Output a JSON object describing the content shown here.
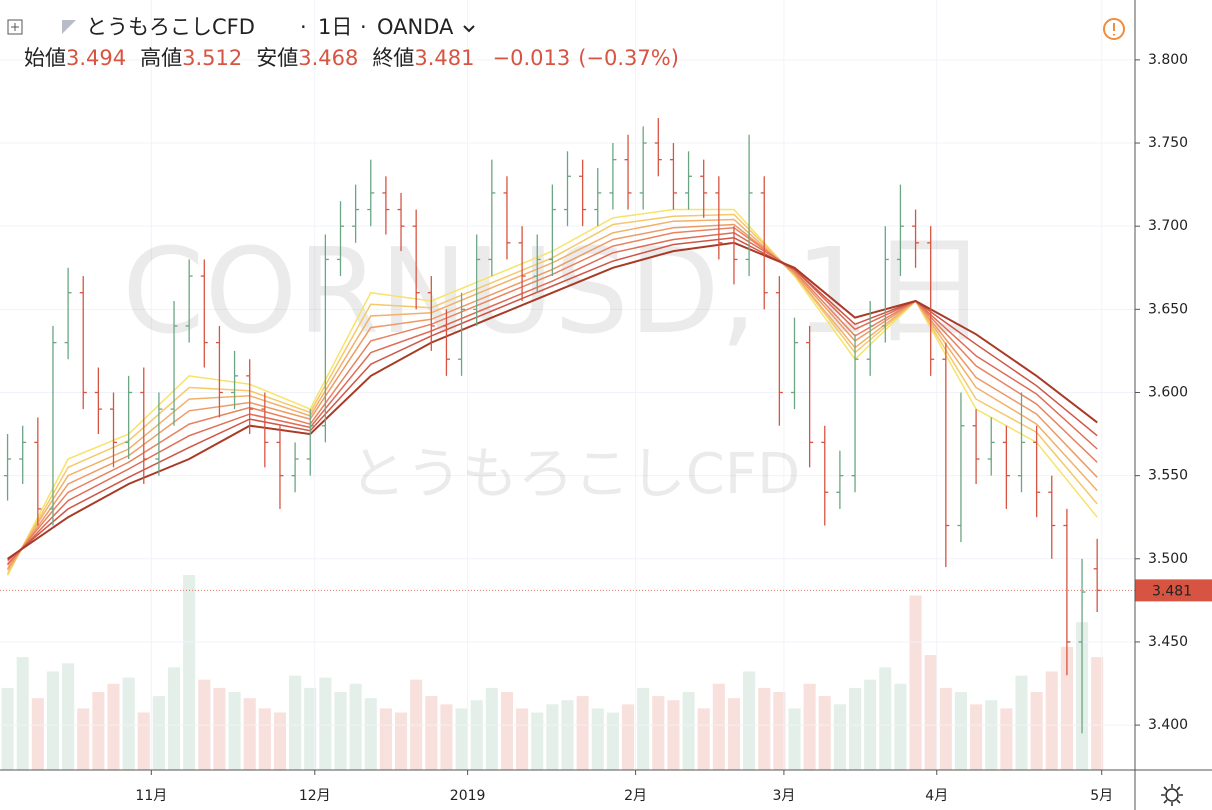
{
  "chart_data": {
    "type": "ohlc",
    "header": {
      "symbol": "とうもろこしCFD",
      "interval": "1日",
      "source": "OANDA",
      "open_label": "始値",
      "high_label": "高値",
      "low_label": "安値",
      "close_label": "終値",
      "change": {
        "value": -0.013,
        "label": "−0.013"
      },
      "change_pct": {
        "value": -0.37,
        "label": "(−0.37%)"
      }
    },
    "watermark": {
      "main": "CORNUSD, 1日",
      "sub": "とうもろこしCFD"
    },
    "categories": [
      null,
      null,
      null,
      null,
      null,
      null,
      null,
      null,
      null,
      null,
      null,
      null,
      null,
      null,
      null,
      null,
      null,
      null,
      null,
      null,
      null,
      null,
      null,
      null,
      null,
      null,
      null,
      null,
      null,
      null,
      null,
      null,
      null,
      null,
      null,
      null,
      null,
      null,
      null,
      null,
      null,
      null,
      null,
      null,
      null,
      null,
      null,
      null,
      null,
      null,
      null,
      null,
      null,
      null,
      null,
      null,
      null,
      null,
      null,
      null,
      null,
      null,
      null,
      null,
      null,
      null,
      null,
      null,
      null,
      null,
      null,
      null,
      null
    ],
    "xlim": [
      -0.5,
      74.5
    ],
    "xticks": [
      {
        "value": 9.5,
        "label": "11月"
      },
      {
        "value": 20.3,
        "label": "12月"
      },
      {
        "value": 30.4,
        "label": "2019"
      },
      {
        "value": 41.5,
        "label": "2月"
      },
      {
        "value": 51.3,
        "label": "3月"
      },
      {
        "value": 61.4,
        "label": "4月"
      },
      {
        "value": 72.3,
        "label": "5月"
      }
    ],
    "ylim": [
      3.373,
      3.836
    ],
    "yticks": [
      {
        "value": 3.4,
        "label": "3.400"
      },
      {
        "value": 3.45,
        "label": "3.450"
      },
      {
        "value": 3.5,
        "label": "3.500"
      },
      {
        "value": 3.55,
        "label": "3.550"
      },
      {
        "value": 3.6,
        "label": "3.600"
      },
      {
        "value": 3.65,
        "label": "3.650"
      },
      {
        "value": 3.7,
        "label": "3.700"
      },
      {
        "value": 3.75,
        "label": "3.750"
      },
      {
        "value": 3.8,
        "label": "3.800"
      }
    ],
    "grid": true,
    "up_color": "#6ba583",
    "down_color": "#d75442",
    "ohlc": {
      "open": [
        3.55,
        3.56,
        3.57,
        3.53,
        3.63,
        3.66,
        3.6,
        3.59,
        3.57,
        3.6,
        3.56,
        3.59,
        3.64,
        3.67,
        3.63,
        3.6,
        3.61,
        3.59,
        3.57,
        3.55,
        3.56,
        3.58,
        3.68,
        3.7,
        3.71,
        3.72,
        3.71,
        3.7,
        3.66,
        3.64,
        3.62,
        3.65,
        3.68,
        3.72,
        3.69,
        3.67,
        3.68,
        3.71,
        3.73,
        3.71,
        3.72,
        3.74,
        3.72,
        3.75,
        3.74,
        3.72,
        3.73,
        3.72,
        3.69,
        3.68,
        3.72,
        3.66,
        3.6,
        3.63,
        3.57,
        3.54,
        3.55,
        3.62,
        3.64,
        3.68,
        3.7,
        3.69,
        3.62,
        3.52,
        3.58,
        3.56,
        3.57,
        3.55,
        3.57,
        3.54,
        3.52,
        3.45,
        3.494
      ],
      "high": [
        3.575,
        3.58,
        3.585,
        3.64,
        3.675,
        3.67,
        3.615,
        3.6,
        3.61,
        3.615,
        3.6,
        3.655,
        3.68,
        3.68,
        3.64,
        3.625,
        3.62,
        3.6,
        3.58,
        3.57,
        3.59,
        3.695,
        3.715,
        3.725,
        3.74,
        3.73,
        3.72,
        3.71,
        3.67,
        3.65,
        3.66,
        3.695,
        3.74,
        3.73,
        3.7,
        3.695,
        3.725,
        3.745,
        3.74,
        3.735,
        3.75,
        3.755,
        3.76,
        3.765,
        3.75,
        3.745,
        3.74,
        3.73,
        3.7,
        3.755,
        3.73,
        3.67,
        3.645,
        3.64,
        3.58,
        3.565,
        3.635,
        3.655,
        3.7,
        3.725,
        3.71,
        3.7,
        3.63,
        3.6,
        3.59,
        3.585,
        3.58,
        3.6,
        3.58,
        3.55,
        3.53,
        3.5,
        3.512
      ],
      "low": [
        3.535,
        3.545,
        3.52,
        3.52,
        3.62,
        3.59,
        3.575,
        3.555,
        3.56,
        3.545,
        3.55,
        3.58,
        3.63,
        3.615,
        3.585,
        3.59,
        3.575,
        3.555,
        3.53,
        3.54,
        3.55,
        3.57,
        3.67,
        3.69,
        3.7,
        3.695,
        3.685,
        3.65,
        3.625,
        3.61,
        3.61,
        3.64,
        3.67,
        3.68,
        3.655,
        3.66,
        3.67,
        3.7,
        3.7,
        3.7,
        3.71,
        3.71,
        3.71,
        3.73,
        3.71,
        3.71,
        3.705,
        3.68,
        3.665,
        3.67,
        3.65,
        3.58,
        3.59,
        3.555,
        3.52,
        3.53,
        3.54,
        3.61,
        3.63,
        3.67,
        3.675,
        3.61,
        3.495,
        3.51,
        3.545,
        3.55,
        3.53,
        3.54,
        3.525,
        3.5,
        3.43,
        3.395,
        3.468
      ],
      "close": [
        3.56,
        3.57,
        3.53,
        3.63,
        3.66,
        3.6,
        3.59,
        3.57,
        3.6,
        3.56,
        3.59,
        3.64,
        3.67,
        3.63,
        3.6,
        3.61,
        3.59,
        3.57,
        3.55,
        3.56,
        3.58,
        3.68,
        3.7,
        3.71,
        3.72,
        3.71,
        3.7,
        3.66,
        3.64,
        3.62,
        3.65,
        3.68,
        3.72,
        3.69,
        3.67,
        3.68,
        3.71,
        3.73,
        3.71,
        3.72,
        3.74,
        3.72,
        3.75,
        3.74,
        3.72,
        3.73,
        3.72,
        3.69,
        3.68,
        3.72,
        3.66,
        3.6,
        3.63,
        3.57,
        3.54,
        3.55,
        3.62,
        3.64,
        3.68,
        3.7,
        3.69,
        3.62,
        3.52,
        3.58,
        3.56,
        3.57,
        3.55,
        3.57,
        3.54,
        3.52,
        3.45,
        3.48,
        3.481
      ]
    },
    "volume": [
      40,
      55,
      35,
      48,
      52,
      30,
      38,
      42,
      45,
      28,
      36,
      50,
      95,
      44,
      40,
      38,
      35,
      30,
      28,
      46,
      40,
      45,
      38,
      42,
      35,
      30,
      28,
      44,
      36,
      32,
      30,
      34,
      40,
      38,
      30,
      28,
      32,
      34,
      36,
      30,
      28,
      32,
      40,
      36,
      34,
      38,
      30,
      42,
      35,
      48,
      40,
      38,
      30,
      42,
      36,
      32,
      40,
      44,
      50,
      42,
      85,
      56,
      40,
      38,
      32,
      34,
      30,
      46,
      38,
      48,
      60,
      72,
      55
    ],
    "ribbon_x": [
      0,
      4,
      8,
      12,
      16,
      20,
      24,
      28,
      32,
      36,
      40,
      44,
      48,
      52,
      56,
      60,
      64,
      68,
      72
    ],
    "ribbon": [
      {
        "color": "#f7e36a",
        "values": [
          3.49,
          3.56,
          3.575,
          3.61,
          3.605,
          3.59,
          3.66,
          3.655,
          3.67,
          3.685,
          3.705,
          3.71,
          3.71,
          3.67,
          3.62,
          3.655,
          3.59,
          3.57,
          3.525
        ]
      },
      {
        "color": "#f5c86a",
        "values": [
          3.491,
          3.555,
          3.571,
          3.603,
          3.601,
          3.588,
          3.653,
          3.651,
          3.666,
          3.681,
          3.701,
          3.706,
          3.707,
          3.671,
          3.624,
          3.655,
          3.596,
          3.576,
          3.533
        ]
      },
      {
        "color": "#f2b06a",
        "values": [
          3.493,
          3.55,
          3.566,
          3.596,
          3.598,
          3.586,
          3.646,
          3.648,
          3.663,
          3.678,
          3.696,
          3.703,
          3.704,
          3.671,
          3.627,
          3.655,
          3.603,
          3.581,
          3.541
        ]
      },
      {
        "color": "#ee9a66",
        "values": [
          3.494,
          3.545,
          3.562,
          3.589,
          3.594,
          3.584,
          3.639,
          3.644,
          3.659,
          3.674,
          3.692,
          3.699,
          3.701,
          3.672,
          3.631,
          3.655,
          3.609,
          3.587,
          3.549
        ]
      },
      {
        "color": "#e88360",
        "values": [
          3.496,
          3.54,
          3.558,
          3.581,
          3.591,
          3.581,
          3.631,
          3.641,
          3.656,
          3.671,
          3.688,
          3.696,
          3.699,
          3.673,
          3.634,
          3.655,
          3.616,
          3.593,
          3.558
        ]
      },
      {
        "color": "#df6c56",
        "values": [
          3.497,
          3.535,
          3.554,
          3.574,
          3.587,
          3.579,
          3.624,
          3.637,
          3.652,
          3.667,
          3.684,
          3.692,
          3.696,
          3.674,
          3.638,
          3.655,
          3.622,
          3.599,
          3.566
        ]
      },
      {
        "color": "#cf5545",
        "values": [
          3.499,
          3.53,
          3.549,
          3.567,
          3.584,
          3.577,
          3.617,
          3.634,
          3.649,
          3.664,
          3.679,
          3.689,
          3.693,
          3.674,
          3.641,
          3.655,
          3.629,
          3.604,
          3.574
        ]
      },
      {
        "color": "#a83a26",
        "values": [
          3.5,
          3.525,
          3.545,
          3.56,
          3.58,
          3.575,
          3.61,
          3.63,
          3.645,
          3.66,
          3.675,
          3.685,
          3.69,
          3.675,
          3.645,
          3.655,
          3.635,
          3.61,
          3.582
        ]
      }
    ]
  }
}
